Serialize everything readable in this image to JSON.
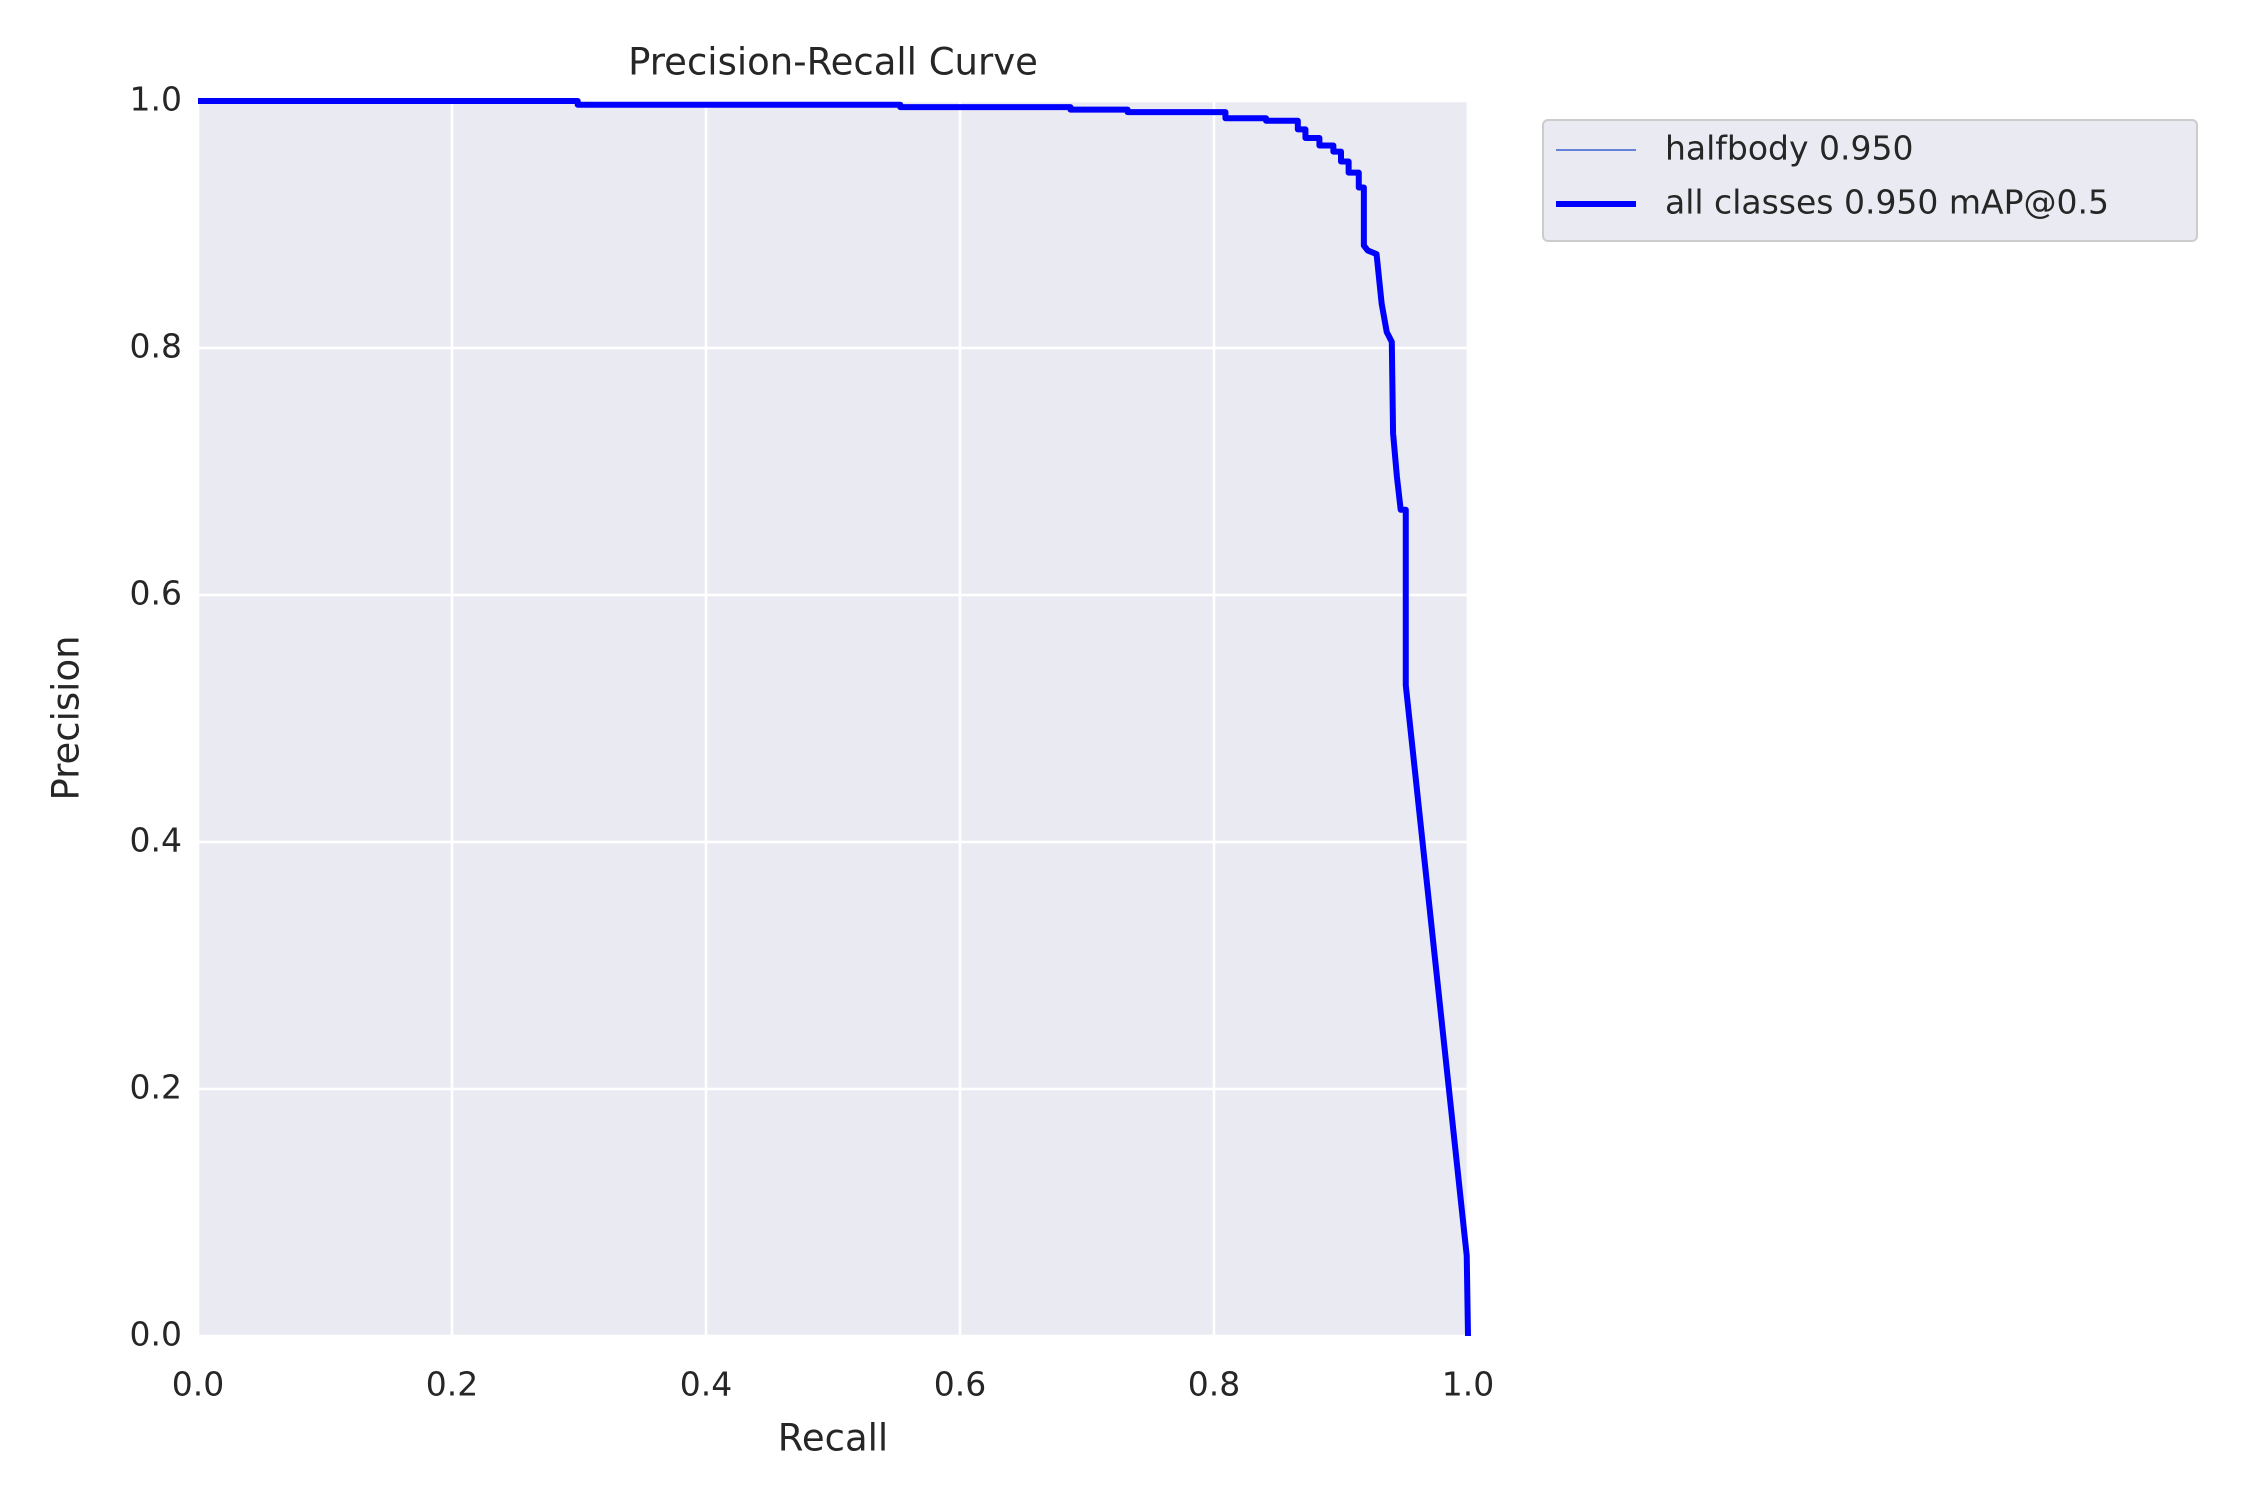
{
  "chart_data": {
    "type": "line",
    "title": "Precision-Recall Curve",
    "x_label": "Recall",
    "y_label": "Precision",
    "xlim": [
      0,
      1
    ],
    "ylim": [
      0,
      1
    ],
    "xticks": [
      {
        "value": 0,
        "label": "0.0"
      },
      0.2,
      0.4,
      0.6,
      0.8,
      {
        "value": 1,
        "label": "1.0"
      }
    ],
    "yticks": [
      {
        "value": 0,
        "label": "0.0"
      },
      0.2,
      0.4,
      0.6,
      0.8,
      {
        "value": 1,
        "label": "1.0"
      }
    ],
    "grid": true,
    "legend": "outside-upper-right",
    "x": [
      0,
      0.299,
      0.299,
      0.553,
      0.553,
      0.687,
      0.687,
      0.732,
      0.732,
      0.809,
      0.809,
      0.841,
      0.841,
      0.866,
      0.866,
      0.872,
      0.872,
      0.883,
      0.883,
      0.894,
      0.894,
      0.9,
      0.9,
      0.906,
      0.906,
      0.914,
      0.914,
      0.918,
      0.918,
      0.921,
      0.928,
      0.932,
      0.936,
      0.94,
      0.941,
      0.944,
      0.947,
      0.951,
      0.951,
      0.999,
      1.0
    ],
    "series": [
      {
        "name": "halfbody 0.950",
        "color": "#3b5fd0",
        "linewidth": 1.5,
        "values": [
          1.0,
          1.0,
          0.997,
          0.997,
          0.995,
          0.995,
          0.993,
          0.993,
          0.991,
          0.991,
          0.986,
          0.986,
          0.984,
          0.984,
          0.977,
          0.977,
          0.97,
          0.97,
          0.964,
          0.964,
          0.959,
          0.959,
          0.951,
          0.951,
          0.942,
          0.942,
          0.93,
          0.93,
          0.883,
          0.879,
          0.876,
          0.836,
          0.813,
          0.805,
          0.731,
          0.696,
          0.669,
          0.669,
          0.527,
          0.065,
          0.0
        ]
      },
      {
        "name": "all classes 0.950 mAP@0.5",
        "color": "#0000ff",
        "linewidth": 6,
        "values": [
          1.0,
          1.0,
          0.997,
          0.997,
          0.995,
          0.995,
          0.993,
          0.993,
          0.991,
          0.991,
          0.986,
          0.986,
          0.984,
          0.984,
          0.977,
          0.977,
          0.97,
          0.97,
          0.964,
          0.964,
          0.959,
          0.959,
          0.951,
          0.951,
          0.942,
          0.942,
          0.93,
          0.93,
          0.883,
          0.879,
          0.876,
          0.836,
          0.813,
          0.805,
          0.731,
          0.696,
          0.669,
          0.669,
          0.527,
          0.065,
          0.0
        ]
      }
    ]
  }
}
